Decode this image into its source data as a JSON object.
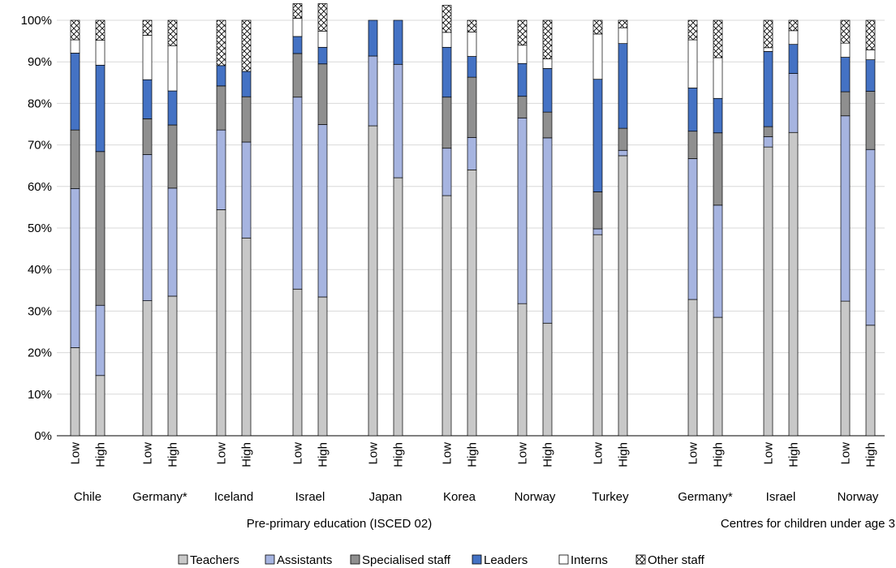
{
  "chart_data": {
    "type": "bar",
    "stacked": true,
    "ylim": [
      0,
      100
    ],
    "y_ticks": [
      "0%",
      "10%",
      "20%",
      "30%",
      "40%",
      "50%",
      "60%",
      "70%",
      "80%",
      "90%",
      "100%"
    ],
    "groups": [
      {
        "name": "Chile",
        "section": "pre"
      },
      {
        "name": "Germany*",
        "section": "pre"
      },
      {
        "name": "Iceland",
        "section": "pre"
      },
      {
        "name": "Israel",
        "section": "pre"
      },
      {
        "name": "Japan",
        "section": "pre"
      },
      {
        "name": "Korea",
        "section": "pre"
      },
      {
        "name": "Norway",
        "section": "pre"
      },
      {
        "name": "Turkey",
        "section": "pre"
      },
      {
        "name": "Germany*",
        "section": "u3"
      },
      {
        "name": "Israel",
        "section": "u3"
      },
      {
        "name": "Norway",
        "section": "u3"
      }
    ],
    "bar_labels": [
      "Low",
      "High"
    ],
    "sections": [
      {
        "id": "pre",
        "label": "Pre-primary education (ISCED 02)"
      },
      {
        "id": "u3",
        "label": "Centres for children under age 3"
      }
    ],
    "series": [
      {
        "name": "Teachers",
        "color": "#c8c8c8",
        "pattern": "solid",
        "values": [
          [
            21.2,
            14.5
          ],
          [
            32.5,
            33.6
          ],
          [
            54.4,
            47.6
          ],
          [
            35.3,
            33.4
          ],
          [
            74.6,
            62.1
          ],
          [
            57.8,
            64.0
          ],
          [
            31.8,
            27.1
          ],
          [
            48.4,
            67.4
          ],
          [
            32.8,
            28.5
          ],
          [
            69.5,
            73.0
          ],
          [
            32.4,
            26.6
          ]
        ]
      },
      {
        "name": "Assistants",
        "color": "#a6b4e0",
        "pattern": "solid",
        "values": [
          [
            38.3,
            16.9
          ],
          [
            35.2,
            26.0
          ],
          [
            19.2,
            23.1
          ],
          [
            46.2,
            41.5
          ],
          [
            16.8,
            27.3
          ],
          [
            11.4,
            7.8
          ],
          [
            44.7,
            44.6
          ],
          [
            1.4,
            1.3
          ],
          [
            33.9,
            27.0
          ],
          [
            2.5,
            14.2
          ],
          [
            44.6,
            42.3
          ]
        ]
      },
      {
        "name": "Specialised staff",
        "color": "#8f8f8f",
        "pattern": "solid",
        "values": [
          [
            14.1,
            37.0
          ],
          [
            8.6,
            15.2
          ],
          [
            10.6,
            10.9
          ],
          [
            10.5,
            14.6
          ],
          [
            0.0,
            0.0
          ],
          [
            12.3,
            14.5
          ],
          [
            5.2,
            6.2
          ],
          [
            8.9,
            5.3
          ],
          [
            6.6,
            17.4
          ],
          [
            2.4,
            0.0
          ],
          [
            5.8,
            14.0
          ]
        ]
      },
      {
        "name": "Leaders",
        "color": "#4472c4",
        "pattern": "solid",
        "values": [
          [
            18.5,
            20.8
          ],
          [
            9.4,
            8.2
          ],
          [
            4.9,
            6.1
          ],
          [
            4.1,
            4.0
          ],
          [
            8.6,
            10.6
          ],
          [
            12.0,
            5.0
          ],
          [
            7.9,
            10.5
          ],
          [
            27.1,
            20.4
          ],
          [
            10.4,
            8.3
          ],
          [
            18.1,
            7.0
          ],
          [
            8.3,
            7.6
          ]
        ]
      },
      {
        "name": "Interns",
        "color": "#ffffff",
        "pattern": "solid",
        "values": [
          [
            3.2,
            6.0
          ],
          [
            10.7,
            10.9
          ],
          [
            0.0,
            0.0
          ],
          [
            4.4,
            3.9
          ],
          [
            0.0,
            0.0
          ],
          [
            3.6,
            5.9
          ],
          [
            4.4,
            2.3
          ],
          [
            10.9,
            3.8
          ],
          [
            11.6,
            9.8
          ],
          [
            0.9,
            3.3
          ],
          [
            3.4,
            2.4
          ]
        ]
      },
      {
        "name": "Other staff",
        "color": "#ffffff",
        "pattern": "cross",
        "values": [
          [
            4.7,
            4.8
          ],
          [
            3.6,
            6.1
          ],
          [
            10.9,
            12.3
          ],
          [
            3.5,
            6.6
          ],
          [
            0.0,
            0.0
          ],
          [
            6.5,
            2.8
          ],
          [
            6.0,
            9.3
          ],
          [
            3.3,
            1.8
          ],
          [
            4.7,
            9.0
          ],
          [
            6.6,
            2.5
          ],
          [
            5.5,
            7.1
          ]
        ]
      }
    ]
  }
}
